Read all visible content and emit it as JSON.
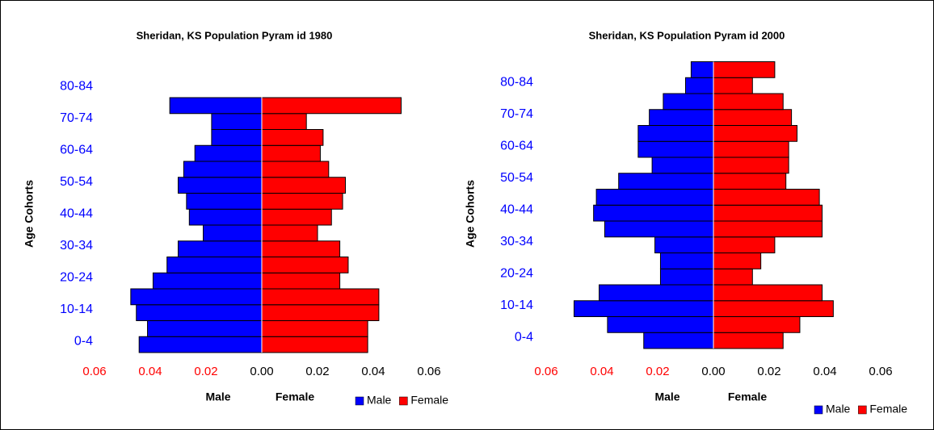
{
  "chart_data": [
    {
      "type": "pyramid",
      "title": "Sheridan, KS Population Pyram id 1980",
      "y_label": "Age Cohorts",
      "x_label_left": "Male",
      "x_label_right": "Female",
      "categories": [
        "0-4",
        null,
        "10-14",
        null,
        "20-24",
        null,
        "30-34",
        null,
        "40-44",
        null,
        "50-54",
        null,
        "60-64",
        null,
        "70-74",
        null,
        "80-84",
        null
      ],
      "series": [
        {
          "name": "Male",
          "color": "#0000ff",
          "values": [
            0.044,
            0.041,
            0.045,
            0.047,
            0.039,
            0.034,
            0.03,
            0.021,
            0.026,
            0.027,
            0.03,
            0.028,
            0.024,
            0.018,
            0.018,
            0.033,
            null,
            null
          ]
        },
        {
          "name": "Female",
          "color": "#ff0000",
          "values": [
            0.038,
            0.038,
            0.042,
            0.042,
            0.028,
            0.031,
            0.028,
            0.02,
            0.025,
            0.029,
            0.03,
            0.024,
            0.021,
            0.022,
            0.016,
            0.05,
            null,
            null
          ]
        }
      ],
      "xlim": [
        -0.06,
        0.06
      ],
      "xticks": [
        {
          "value": -0.06,
          "label": "0.06"
        },
        {
          "value": -0.04,
          "label": "0.04"
        },
        {
          "value": -0.02,
          "label": "0.02"
        },
        {
          "value": 0,
          "label": "0.00"
        },
        0.02,
        0.04,
        0.06
      ]
    },
    {
      "type": "pyramid",
      "title": "Sheridan, KS Population Pyram id 2000",
      "y_label": "Age Cohorts",
      "x_label_left": "Male",
      "x_label_right": "Female",
      "categories": [
        "0-4",
        null,
        "10-14",
        null,
        "20-24",
        null,
        "30-34",
        null,
        "40-44",
        null,
        "50-54",
        null,
        "60-64",
        null,
        "70-74",
        null,
        "80-84",
        null
      ],
      "series": [
        {
          "name": "Male",
          "color": "#0000ff",
          "values": [
            0.025,
            0.038,
            0.05,
            0.041,
            0.019,
            0.019,
            0.021,
            0.039,
            0.043,
            0.042,
            0.034,
            0.022,
            0.027,
            0.027,
            0.023,
            0.018,
            0.01,
            0.008
          ]
        },
        {
          "name": "Female",
          "color": "#ff0000",
          "values": [
            0.025,
            0.031,
            0.043,
            0.039,
            0.014,
            0.017,
            0.022,
            0.039,
            0.039,
            0.038,
            0.026,
            0.027,
            0.027,
            0.03,
            0.028,
            0.025,
            0.014,
            0.022
          ]
        }
      ],
      "xlim": [
        -0.06,
        0.06
      ],
      "xticks": [
        {
          "value": -0.06,
          "label": "0.06"
        },
        {
          "value": -0.04,
          "label": "0.04"
        },
        {
          "value": -0.02,
          "label": "0.02"
        },
        {
          "value": 0,
          "label": "0.00"
        },
        0.02,
        0.04,
        0.06
      ]
    }
  ]
}
